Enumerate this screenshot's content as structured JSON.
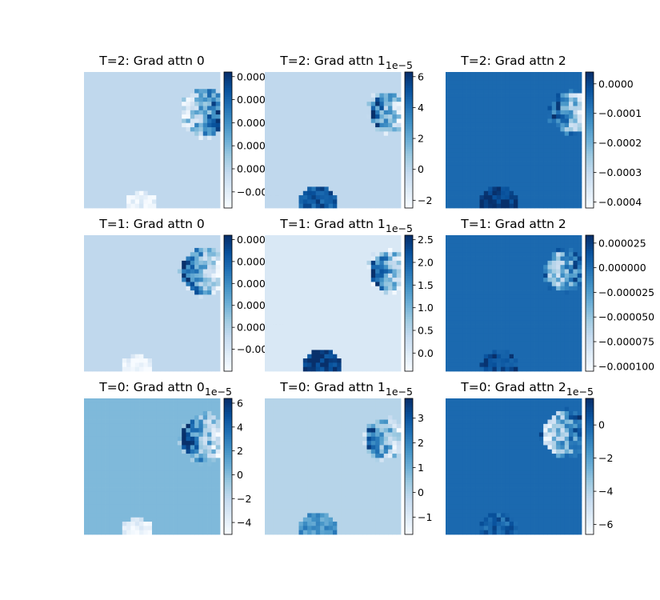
{
  "chart_data": [
    {
      "type": "heatmap",
      "title": "T=2: Grad attn 0",
      "colorbar": {
        "ticks": [
          "0.0004",
          "0.0003",
          "0.0002",
          "0.0001",
          "0.0000",
          "−0.0001"
        ],
        "tick_values": [
          0.0004,
          0.0003,
          0.0002,
          0.0001,
          0.0,
          -0.0001
        ],
        "range": [
          -0.00017,
          0.00042
        ],
        "offset": ""
      },
      "background": 0.0,
      "colormap": "Blues"
    },
    {
      "type": "heatmap",
      "title": "T=2: Grad attn 1",
      "colorbar": {
        "ticks": [
          "6",
          "4",
          "2",
          "0",
          "−2"
        ],
        "tick_values": [
          6,
          4,
          2,
          0,
          -2
        ],
        "range": [
          -2.5,
          6.3
        ],
        "offset": "1e−5"
      },
      "background": 0.0,
      "colormap": "Blues"
    },
    {
      "type": "heatmap",
      "title": "T=2: Grad attn 2",
      "colorbar": {
        "ticks": [
          "0.0000",
          "−0.0001",
          "−0.0002",
          "−0.0003",
          "−0.0004"
        ],
        "tick_values": [
          0.0,
          -0.0001,
          -0.0002,
          -0.0003,
          -0.0004
        ],
        "range": [
          -0.00042,
          4e-05
        ],
        "offset": ""
      },
      "background": 0.0,
      "colormap": "Blues"
    },
    {
      "type": "heatmap",
      "title": "T=1: Grad attn 0",
      "colorbar": {
        "ticks": [
          "0.000100",
          "0.000075",
          "0.000050",
          "0.000025",
          "0.000000",
          "−0.000025"
        ],
        "tick_values": [
          0.0001,
          7.5e-05,
          5e-05,
          2.5e-05,
          0.0,
          -2.5e-05
        ],
        "range": [
          -5e-05,
          0.000105
        ],
        "offset": ""
      },
      "background": 0.0,
      "colormap": "Blues"
    },
    {
      "type": "heatmap",
      "title": "T=1: Grad attn 1",
      "colorbar": {
        "ticks": [
          "2.5",
          "2.0",
          "1.5",
          "1.0",
          "0.5",
          "0.0"
        ],
        "tick_values": [
          2.5,
          2.0,
          1.5,
          1.0,
          0.5,
          0.0
        ],
        "range": [
          -0.4,
          2.6
        ],
        "offset": "1e−5"
      },
      "background": 0.0,
      "colormap": "Blues"
    },
    {
      "type": "heatmap",
      "title": "T=1: Grad attn 2",
      "colorbar": {
        "ticks": [
          "0.000025",
          "0.000000",
          "−0.000025",
          "−0.000050",
          "−0.000075",
          "−0.000100"
        ],
        "tick_values": [
          2.5e-05,
          0.0,
          -2.5e-05,
          -5e-05,
          -7.5e-05,
          -0.0001
        ],
        "range": [
          -0.000105,
          3.3e-05
        ],
        "offset": ""
      },
      "background": 0.0,
      "colormap": "Blues"
    },
    {
      "type": "heatmap",
      "title": "T=0: Grad attn 0",
      "colorbar": {
        "ticks": [
          "6",
          "4",
          "2",
          "0",
          "−2",
          "−4"
        ],
        "tick_values": [
          6,
          4,
          2,
          0,
          -2,
          -4
        ],
        "range": [
          -5,
          6.4
        ],
        "offset": "1e−5"
      },
      "background": 0.0,
      "colormap": "Blues"
    },
    {
      "type": "heatmap",
      "title": "T=0: Grad attn 1",
      "colorbar": {
        "ticks": [
          "3",
          "2",
          "1",
          "0",
          "−1"
        ],
        "tick_values": [
          3,
          2,
          1,
          0,
          -1
        ],
        "range": [
          -1.7,
          3.8
        ],
        "offset": "1e−5"
      },
      "background": 0.0,
      "colormap": "Blues"
    },
    {
      "type": "heatmap",
      "title": "T=0: Grad attn 2",
      "colorbar": {
        "ticks": [
          "0",
          "−2",
          "−4",
          "−6"
        ],
        "tick_values": [
          0,
          -2,
          -4,
          -6
        ],
        "range": [
          -6.6,
          1.6
        ],
        "offset": "1e−5"
      },
      "background": 0.0,
      "colormap": "Blues"
    }
  ]
}
